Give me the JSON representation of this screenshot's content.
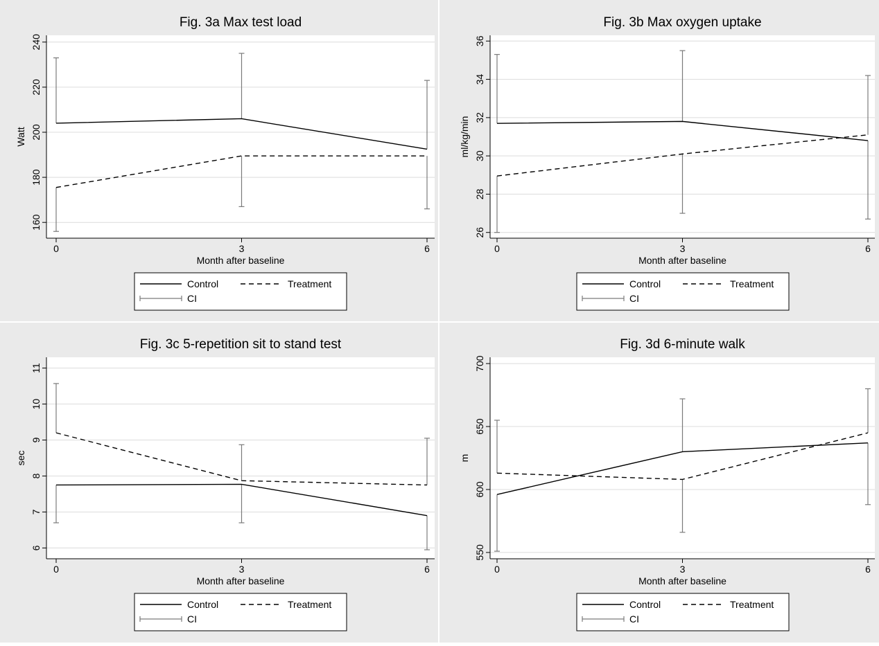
{
  "chart_data": [
    {
      "type": "line",
      "title": "Fig. 3a Max test load",
      "xlabel": "Month after baseline",
      "ylabel": "Watt",
      "x": [
        0,
        3,
        6
      ],
      "x_ticks": [
        "0",
        "3",
        "6"
      ],
      "y_ticks": [
        "160",
        "180",
        "200",
        "220",
        "240"
      ],
      "ylim": [
        153,
        243
      ],
      "grid": true,
      "series": [
        {
          "name": "Control",
          "style": "solid",
          "values": [
            204,
            206,
            192.5
          ],
          "ci_low": [
            null,
            null,
            null
          ],
          "ci_high": [
            233,
            235,
            223
          ]
        },
        {
          "name": "Treatment",
          "style": "dashed",
          "values": [
            175.5,
            189.5,
            189.5
          ],
          "ci_low": [
            156,
            167,
            166
          ],
          "ci_high": [
            null,
            null,
            null
          ]
        }
      ],
      "legend": {
        "entries": [
          "Control",
          "Treatment",
          "CI"
        ],
        "position": "bottom"
      }
    },
    {
      "type": "line",
      "title": "Fig. 3b Max oxygen uptake",
      "xlabel": "Month after baseline",
      "ylabel": "ml/kg/min",
      "x": [
        0,
        3,
        6
      ],
      "x_ticks": [
        "0",
        "3",
        "6"
      ],
      "y_ticks": [
        "26",
        "28",
        "30",
        "32",
        "34",
        "36"
      ],
      "ylim": [
        25.7,
        36.3
      ],
      "grid": true,
      "series": [
        {
          "name": "Control",
          "style": "solid",
          "values": [
            31.7,
            31.8,
            30.8
          ],
          "ci_low": [
            null,
            null,
            26.7
          ],
          "ci_high": [
            35.3,
            35.5,
            null
          ]
        },
        {
          "name": "Treatment",
          "style": "dashed",
          "values": [
            28.95,
            30.1,
            31.1
          ],
          "ci_low": [
            26,
            27,
            null
          ],
          "ci_high": [
            null,
            null,
            34.2
          ]
        }
      ],
      "legend": {
        "entries": [
          "Control",
          "Treatment",
          "CI"
        ],
        "position": "bottom"
      }
    },
    {
      "type": "line",
      "title": "Fig. 3c 5-repetition sit to stand test",
      "xlabel": "Month after baseline",
      "ylabel": "sec",
      "x": [
        0,
        3,
        6
      ],
      "x_ticks": [
        "0",
        "3",
        "6"
      ],
      "y_ticks": [
        "6",
        "7",
        "8",
        "9",
        "10",
        "11"
      ],
      "ylim": [
        5.7,
        11.3
      ],
      "grid": true,
      "series": [
        {
          "name": "Control",
          "style": "solid",
          "values": [
            7.75,
            7.77,
            6.9
          ],
          "ci_low": [
            6.7,
            6.7,
            5.95
          ],
          "ci_high": [
            null,
            null,
            null
          ]
        },
        {
          "name": "Treatment",
          "style": "dashed",
          "values": [
            9.2,
            7.87,
            7.75
          ],
          "ci_low": [
            null,
            null,
            null
          ],
          "ci_high": [
            10.57,
            8.87,
            9.05
          ]
        }
      ],
      "legend": {
        "entries": [
          "Control",
          "Treatment",
          "CI"
        ],
        "position": "bottom"
      }
    },
    {
      "type": "line",
      "title": "Fig. 3d 6-minute walk",
      "xlabel": "Month after baseline",
      "ylabel": "m",
      "x": [
        0,
        3,
        6
      ],
      "x_ticks": [
        "0",
        "3",
        "6"
      ],
      "y_ticks": [
        "550",
        "600",
        "650",
        "700"
      ],
      "ylim": [
        545,
        705
      ],
      "grid": true,
      "series": [
        {
          "name": "Control",
          "style": "solid",
          "values": [
            596,
            630,
            637
          ],
          "ci_low": [
            551,
            null,
            588
          ],
          "ci_high": [
            null,
            672,
            null
          ]
        },
        {
          "name": "Treatment",
          "style": "dashed",
          "values": [
            613,
            608,
            645
          ],
          "ci_low": [
            null,
            566,
            null
          ],
          "ci_high": [
            655,
            null,
            680
          ]
        }
      ],
      "legend": {
        "entries": [
          "Control",
          "Treatment",
          "CI"
        ],
        "position": "bottom"
      }
    }
  ]
}
